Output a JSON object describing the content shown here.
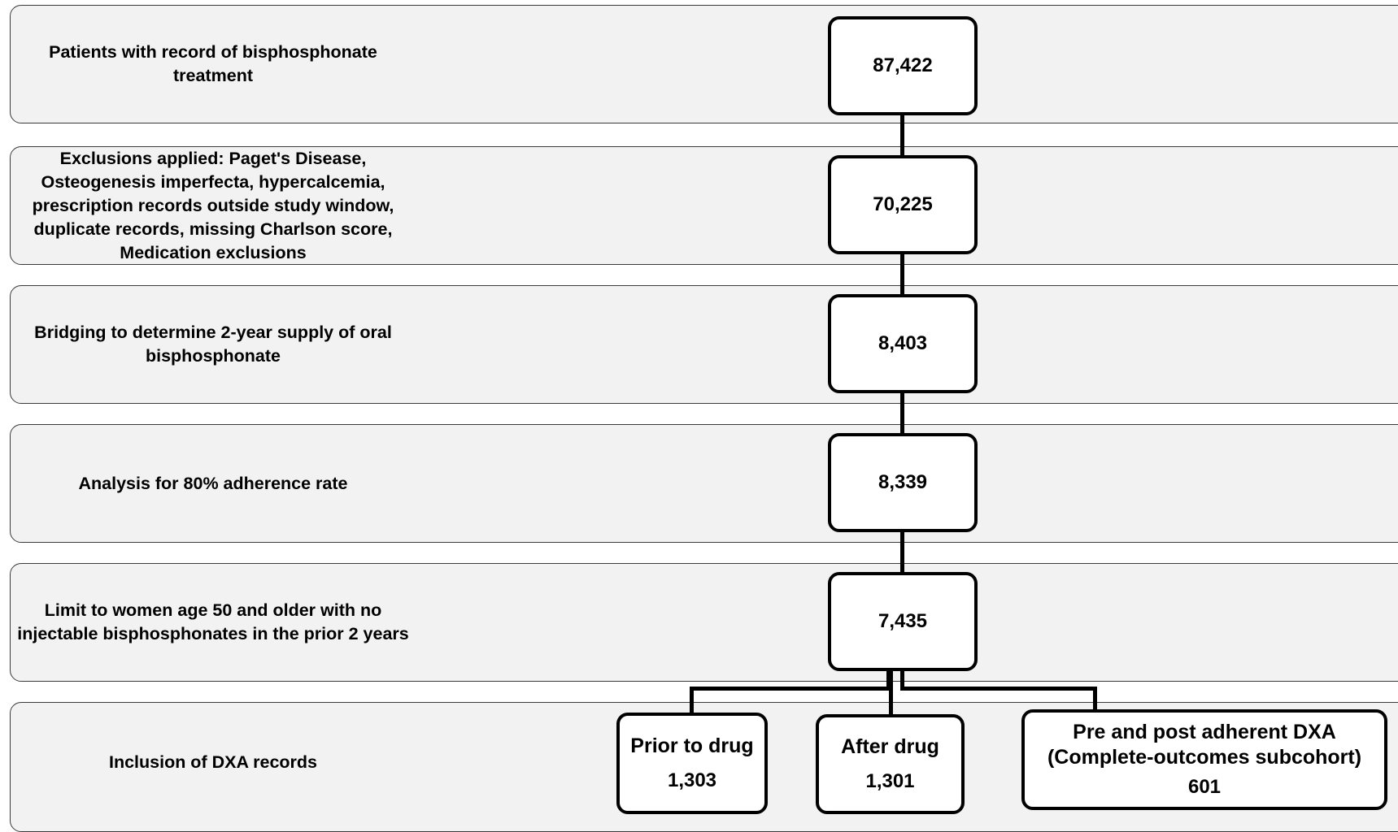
{
  "rows": [
    {
      "label": "Patients with record of bisphosphonate treatment",
      "count": "87,422"
    },
    {
      "label": "Exclusions applied: Paget's Disease, Osteogenesis imperfecta, hypercalcemia, prescription records outside study window, duplicate records, missing Charlson score, Medication exclusions",
      "count": "70,225"
    },
    {
      "label": "Bridging to determine 2-year supply of oral bisphosphonate",
      "count": "8,403"
    },
    {
      "label": "Analysis for 80% adherence rate",
      "count": "8,339"
    },
    {
      "label": "Limit to women age 50 and older with no injectable bisphosphonates in the prior 2 years",
      "count": "7,435"
    },
    {
      "label": "Inclusion of DXA records"
    }
  ],
  "dxa_groups": [
    {
      "label": "Prior to drug",
      "count": "1,303"
    },
    {
      "label": "After drug",
      "count": "1,301"
    },
    {
      "label": "Pre and post adherent DXA (Complete-outcomes subcohort)",
      "count": "601"
    }
  ]
}
